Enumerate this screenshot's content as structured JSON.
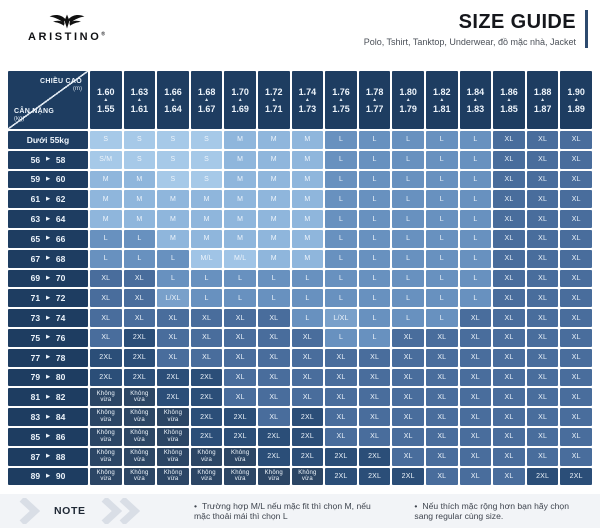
{
  "header": {
    "brand": "ARISTINO",
    "registered_mark": "®",
    "title": "SIZE GUIDE",
    "subtitle": "Polo, Tshirt, Tanktop, Underwear, đồ mặc nhà, Jacket"
  },
  "note": {
    "label": "NOTE",
    "items": [
      "Trường hợp M/L nếu mặc fit thì chọn M, nếu mặc thoải mái thì chọn L",
      "Nếu thích mặc rộng hơn bạn hãy chọn sang regular cùng size."
    ]
  },
  "icons": {
    "up_arrow": "▲",
    "right_arrow": "▶",
    "chevrons": "double-chevron-right",
    "brand_logo": "eagle"
  },
  "colors": {
    "header_navy": "#1E3D61",
    "accent_bar": "#2D4A6E",
    "grid_line": "#FFFFFF",
    "note_band": "#F2F4F7",
    "cell_text": "#EDF4FB",
    "chevron_gray": "#D9DEE6"
  },
  "chart_data": {
    "type": "table",
    "title": "SIZE GUIDE",
    "corner": {
      "top_label": "CHIỀU CAO",
      "top_unit": "(m)",
      "bottom_label": "CÂN NẶNG",
      "bottom_unit": "(kg)"
    },
    "columns": [
      {
        "max": "1.60",
        "min": "1.55"
      },
      {
        "max": "1.63",
        "min": "1.61"
      },
      {
        "max": "1.66",
        "min": "1.64"
      },
      {
        "max": "1.68",
        "min": "1.67"
      },
      {
        "max": "1.70",
        "min": "1.69"
      },
      {
        "max": "1.72",
        "min": "1.71"
      },
      {
        "max": "1.74",
        "min": "1.73"
      },
      {
        "max": "1.76",
        "min": "1.75"
      },
      {
        "max": "1.78",
        "min": "1.77"
      },
      {
        "max": "1.80",
        "min": "1.79"
      },
      {
        "max": "1.82",
        "min": "1.81"
      },
      {
        "max": "1.84",
        "min": "1.83"
      },
      {
        "max": "1.86",
        "min": "1.85"
      },
      {
        "max": "1.88",
        "min": "1.87"
      },
      {
        "max": "1.90",
        "min": "1.89"
      }
    ],
    "rows": [
      {
        "label": {
          "text": "Dưới 55kg"
        },
        "sizes": [
          "S",
          "S",
          "S",
          "S",
          "M",
          "M",
          "M",
          "L",
          "L",
          "L",
          "L",
          "L",
          "XL",
          "XL",
          "XL"
        ]
      },
      {
        "label": {
          "from": "56",
          "to": "58"
        },
        "sizes": [
          "S/M",
          "S",
          "S",
          "S",
          "M",
          "M",
          "M",
          "L",
          "L",
          "L",
          "L",
          "L",
          "XL",
          "XL",
          "XL"
        ]
      },
      {
        "label": {
          "from": "59",
          "to": "60"
        },
        "sizes": [
          "M",
          "M",
          "S",
          "S",
          "M",
          "M",
          "M",
          "L",
          "L",
          "L",
          "L",
          "L",
          "XL",
          "XL",
          "XL"
        ]
      },
      {
        "label": {
          "from": "61",
          "to": "62"
        },
        "sizes": [
          "M",
          "M",
          "M",
          "M",
          "M",
          "M",
          "M",
          "L",
          "L",
          "L",
          "L",
          "L",
          "XL",
          "XL",
          "XL"
        ]
      },
      {
        "label": {
          "from": "63",
          "to": "64"
        },
        "sizes": [
          "M",
          "M",
          "M",
          "M",
          "M",
          "M",
          "M",
          "L",
          "L",
          "L",
          "L",
          "L",
          "XL",
          "XL",
          "XL"
        ]
      },
      {
        "label": {
          "from": "65",
          "to": "66"
        },
        "sizes": [
          "L",
          "L",
          "M",
          "M",
          "M",
          "M",
          "M",
          "L",
          "L",
          "L",
          "L",
          "L",
          "XL",
          "XL",
          "XL"
        ]
      },
      {
        "label": {
          "from": "67",
          "to": "68"
        },
        "sizes": [
          "L",
          "L",
          "L",
          "M/L",
          "M/L",
          "M",
          "M",
          "L",
          "L",
          "L",
          "L",
          "L",
          "XL",
          "XL",
          "XL"
        ]
      },
      {
        "label": {
          "from": "69",
          "to": "70"
        },
        "sizes": [
          "XL",
          "XL",
          "L",
          "L",
          "L",
          "L",
          "L",
          "L",
          "L",
          "L",
          "L",
          "L",
          "XL",
          "XL",
          "XL"
        ]
      },
      {
        "label": {
          "from": "71",
          "to": "72"
        },
        "sizes": [
          "XL",
          "XL",
          "L/XL",
          "L",
          "L",
          "L",
          "L",
          "L",
          "L",
          "L",
          "L",
          "L",
          "XL",
          "XL",
          "XL"
        ]
      },
      {
        "label": {
          "from": "73",
          "to": "74"
        },
        "sizes": [
          "XL",
          "XL",
          "XL",
          "XL",
          "XL",
          "XL",
          "L",
          "L/XL",
          "L",
          "L",
          "L",
          "XL",
          "XL",
          "XL",
          "XL"
        ]
      },
      {
        "label": {
          "from": "75",
          "to": "76"
        },
        "sizes": [
          "XL",
          "2XL",
          "XL",
          "XL",
          "XL",
          "XL",
          "XL",
          "L",
          "L",
          "XL",
          "XL",
          "XL",
          "XL",
          "XL",
          "XL"
        ]
      },
      {
        "label": {
          "from": "77",
          "to": "78"
        },
        "sizes": [
          "2XL",
          "2XL",
          "XL",
          "XL",
          "XL",
          "XL",
          "XL",
          "XL",
          "XL",
          "XL",
          "XL",
          "XL",
          "XL",
          "XL",
          "XL"
        ]
      },
      {
        "label": {
          "from": "79",
          "to": "80"
        },
        "sizes": [
          "2XL",
          "2XL",
          "2XL",
          "2XL",
          "XL",
          "XL",
          "XL",
          "XL",
          "XL",
          "XL",
          "XL",
          "XL",
          "XL",
          "XL",
          "XL"
        ]
      },
      {
        "label": {
          "from": "81",
          "to": "82"
        },
        "sizes": [
          "Không vừa",
          "Không vừa",
          "2XL",
          "2XL",
          "XL",
          "XL",
          "XL",
          "XL",
          "XL",
          "XL",
          "XL",
          "XL",
          "XL",
          "XL",
          "XL"
        ]
      },
      {
        "label": {
          "from": "83",
          "to": "84"
        },
        "sizes": [
          "Không vừa",
          "Không vừa",
          "Không vừa",
          "2XL",
          "2XL",
          "XL",
          "2XL",
          "XL",
          "XL",
          "XL",
          "XL",
          "XL",
          "XL",
          "XL",
          "XL"
        ]
      },
      {
        "label": {
          "from": "85",
          "to": "86"
        },
        "sizes": [
          "Không vừa",
          "Không vừa",
          "Không vừa",
          "2XL",
          "2XL",
          "2XL",
          "2XL",
          "XL",
          "XL",
          "XL",
          "XL",
          "XL",
          "XL",
          "XL",
          "XL"
        ]
      },
      {
        "label": {
          "from": "87",
          "to": "88"
        },
        "sizes": [
          "Không vừa",
          "Không vừa",
          "Không vừa",
          "Không vừa",
          "Không vừa",
          "2XL",
          "2XL",
          "2XL",
          "2XL",
          "XL",
          "XL",
          "XL",
          "XL",
          "XL",
          "XL"
        ]
      },
      {
        "label": {
          "from": "89",
          "to": "90"
        },
        "sizes": [
          "Không vừa",
          "Không vừa",
          "Không vừa",
          "Không vừa",
          "Không vừa",
          "Không vừa",
          "Không vừa",
          "2XL",
          "2XL",
          "2XL",
          "XL",
          "XL",
          "XL",
          "2XL",
          "2XL"
        ]
      }
    ],
    "size_colors": {
      "S": "#A6C9E8",
      "S/M": "#A6C9E8",
      "M": "#8FB6DC",
      "M/L": "#A0C4E6",
      "L": "#6891BF",
      "L/XL": "#79A0CA",
      "XL": "#496D9C",
      "2XL": "#2B4E78",
      "Không vừa": "#2C4665"
    }
  }
}
